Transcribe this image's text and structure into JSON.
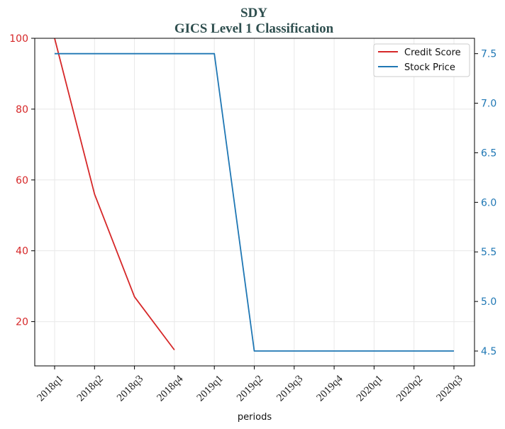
{
  "chart_data": {
    "type": "line",
    "title": "SDY",
    "subtitle": "GICS Level 1 Classification",
    "xlabel": "periods",
    "categories": [
      "2018q1",
      "2018q2",
      "2018q3",
      "2018q4",
      "2019q1",
      "2019q2",
      "2019q3",
      "2019q4",
      "2020q1",
      "2020q2",
      "2020q3"
    ],
    "left_axis": {
      "ylim": [
        7.5,
        100
      ],
      "ticks": [
        20,
        40,
        60,
        80,
        100
      ],
      "color": "#d62728"
    },
    "right_axis": {
      "ylim": [
        4.35,
        7.655
      ],
      "ticks": [
        4.5,
        5.0,
        5.5,
        6.0,
        6.5,
        7.0,
        7.5
      ],
      "color": "#1f77b4"
    },
    "grid": true,
    "legend_position": "top-right",
    "series": [
      {
        "name": "Credit Score",
        "axis": "left",
        "color": "#d62728",
        "values": [
          100,
          56,
          27,
          12,
          null,
          null,
          null,
          null,
          null,
          null,
          null
        ]
      },
      {
        "name": "Stock Price",
        "axis": "right",
        "color": "#1f77b4",
        "values": [
          7.5,
          7.5,
          7.5,
          7.5,
          7.5,
          4.5,
          4.5,
          4.5,
          4.5,
          4.5,
          4.5
        ]
      }
    ]
  }
}
